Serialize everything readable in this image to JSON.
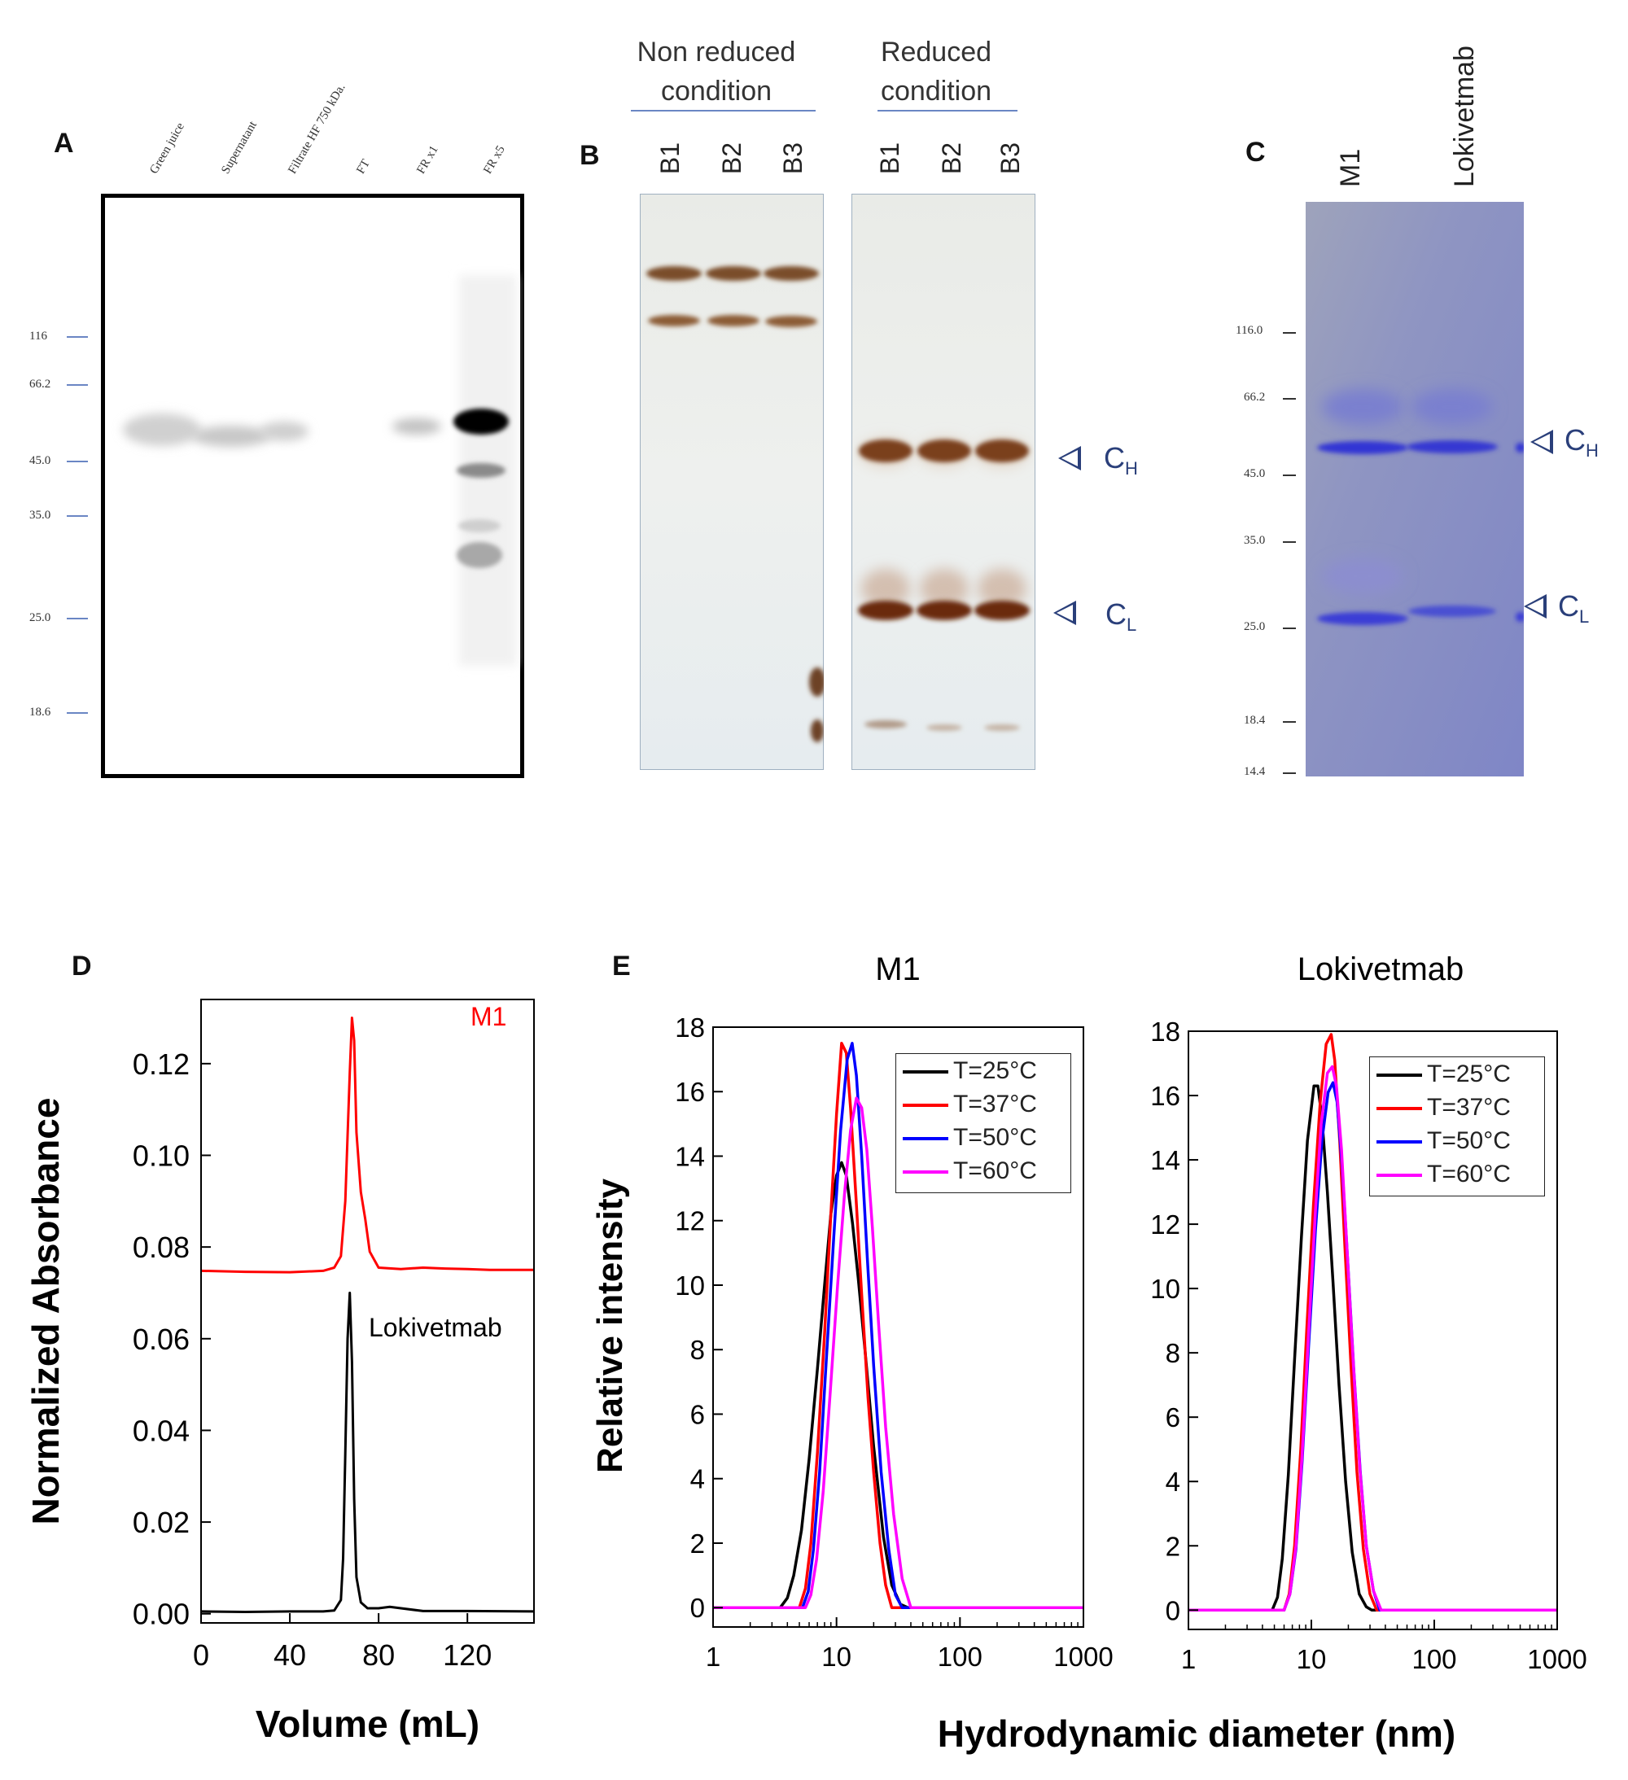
{
  "panels": {
    "A": {
      "letter": "A",
      "lanes": [
        "Green juice",
        "Supernatant",
        "Filtrate HF 750 kDa.",
        "FT",
        "FR x1",
        "FR x5"
      ],
      "markers": [
        "116",
        "66.2",
        "45.0",
        "35.0",
        "25.0",
        "18.6"
      ]
    },
    "B": {
      "letter": "B",
      "conditions": [
        "Non reduced\ncondition",
        "Reduced\ncondition"
      ],
      "lanes": [
        "B1",
        "B2",
        "B3",
        "B1",
        "B2",
        "B3"
      ],
      "arrow_H": "C",
      "arrow_H_sub": "H",
      "arrow_L": "C",
      "arrow_L_sub": "L"
    },
    "C": {
      "letter": "C",
      "lanes": [
        "M1",
        "Lokivetmab"
      ],
      "markers": [
        "116.0",
        "66.2",
        "45.0",
        "35.0",
        "25.0",
        "18.4",
        "14.4"
      ],
      "arrow_H": "C",
      "arrow_H_sub": "H",
      "arrow_L": "C",
      "arrow_L_sub": "L"
    },
    "D": {
      "letter": "D"
    },
    "E": {
      "letter": "E"
    }
  },
  "colors": {
    "t25": "#000000",
    "t37": "#ff0000",
    "t50": "#0000ff",
    "t60": "#ff00ff",
    "m1_trace": "#ff0000",
    "lok_trace": "#000000",
    "marker_line": "#6a86c4",
    "arrow": "#2a3f7a"
  },
  "chart_data": [
    {
      "type": "line",
      "panel": "D",
      "title": "",
      "xlabel": "Volume (mL)",
      "ylabel": "Normalized Absorbance",
      "xlim": [
        0,
        150
      ],
      "ylim": [
        -0.002,
        0.134
      ],
      "xticks": [
        0,
        40,
        80,
        120
      ],
      "yticks": [
        0.0,
        0.02,
        0.04,
        0.06,
        0.08,
        0.1,
        0.12
      ],
      "ytick_labels": [
        "0.00",
        "0.02",
        "0.04",
        "0.06",
        "0.08",
        "0.10",
        "0.12"
      ],
      "series": [
        {
          "name": "M1",
          "x": [
            0,
            20,
            40,
            55,
            60,
            63,
            65,
            67,
            68,
            69,
            70,
            72,
            74,
            76,
            80,
            90,
            100,
            110,
            120,
            130,
            150
          ],
          "y": [
            0.0748,
            0.0746,
            0.0745,
            0.0748,
            0.0755,
            0.078,
            0.09,
            0.118,
            0.13,
            0.125,
            0.105,
            0.092,
            0.086,
            0.079,
            0.0755,
            0.0752,
            0.0755,
            0.0753,
            0.0752,
            0.075,
            0.075
          ]
        },
        {
          "name": "Lokivetmab",
          "x": [
            0,
            20,
            40,
            55,
            60,
            63,
            64,
            65,
            66,
            67,
            68,
            69,
            70,
            72,
            75,
            80,
            85,
            100,
            120,
            150
          ],
          "y": [
            0.0005,
            0.0004,
            0.0005,
            0.0005,
            0.0007,
            0.003,
            0.012,
            0.035,
            0.06,
            0.07,
            0.055,
            0.025,
            0.008,
            0.0025,
            0.0012,
            0.0012,
            0.0015,
            0.0006,
            0.0006,
            0.0005
          ]
        }
      ],
      "annotations": [
        "M1",
        "Lokivetmab"
      ]
    },
    {
      "type": "line",
      "panel": "E-left",
      "title": "M1",
      "xlabel": "Hydrodynamic diameter (nm)",
      "ylabel": "Relative intensity",
      "xscale": "log",
      "xlim": [
        1,
        1000
      ],
      "ylim": [
        -0.6,
        18
      ],
      "xticks": [
        1,
        10,
        100,
        1000
      ],
      "xtick_labels": [
        "1",
        "10",
        "100",
        "1000"
      ],
      "yticks": [
        0,
        2,
        4,
        6,
        8,
        10,
        12,
        14,
        16,
        18
      ],
      "series": [
        {
          "name": "T=25°C",
          "x": [
            1,
            3.5,
            4.0,
            4.5,
            5.2,
            6.0,
            7.0,
            8.0,
            9.0,
            10.0,
            11.0,
            12.0,
            13.5,
            15.0,
            17.0,
            20.0,
            24.0,
            28.0,
            33.0,
            38.0,
            1000
          ],
          "y": [
            0,
            0,
            0.3,
            1.0,
            2.4,
            4.6,
            7.4,
            10.0,
            12.2,
            13.4,
            13.8,
            13.4,
            11.9,
            10.2,
            8.0,
            5.0,
            2.2,
            0.7,
            0.1,
            0,
            0
          ]
        },
        {
          "name": "T=37°C",
          "x": [
            1,
            5.0,
            5.6,
            6.2,
            7.0,
            8.0,
            9.0,
            10.0,
            11.0,
            12.0,
            13.0,
            14.5,
            16.0,
            18.0,
            20.0,
            22.5,
            25.0,
            28.0,
            1000
          ],
          "y": [
            0,
            0,
            0.6,
            2.0,
            4.8,
            8.5,
            12.2,
            15.3,
            17.5,
            17.2,
            15.5,
            12.5,
            9.7,
            6.5,
            4.2,
            2.0,
            0.7,
            0,
            0
          ]
        },
        {
          "name": "T=50°C",
          "x": [
            1,
            5.3,
            5.9,
            6.5,
            7.3,
            8.3,
            9.5,
            10.8,
            12.2,
            13.4,
            14.5,
            16.0,
            17.8,
            20.0,
            23.0,
            26.5,
            30.0,
            34.0,
            1000
          ],
          "y": [
            0,
            0,
            0.5,
            1.8,
            4.2,
            7.8,
            11.5,
            14.8,
            17.0,
            17.5,
            16.5,
            14.0,
            10.8,
            7.5,
            4.2,
            1.8,
            0.4,
            0,
            0
          ]
        },
        {
          "name": "T=60°C",
          "x": [
            1,
            5.6,
            6.2,
            6.9,
            7.8,
            8.9,
            10.2,
            11.6,
            13.0,
            14.5,
            16.0,
            17.6,
            19.5,
            22.0,
            25.0,
            29.0,
            34.0,
            40.0,
            1000
          ],
          "y": [
            0,
            0,
            0.4,
            1.5,
            3.6,
            6.7,
            10.0,
            12.8,
            14.8,
            15.8,
            15.5,
            14.2,
            11.8,
            8.7,
            5.6,
            2.9,
            0.9,
            0,
            0
          ]
        }
      ]
    },
    {
      "type": "line",
      "panel": "E-right",
      "title": "Lokivetmab",
      "xlabel": "Hydrodynamic diameter (nm)",
      "ylabel": "Relative intensity",
      "xscale": "log",
      "xlim": [
        1,
        1000
      ],
      "ylim": [
        -0.6,
        18
      ],
      "xticks": [
        1,
        10,
        100,
        1000
      ],
      "xtick_labels": [
        "1",
        "10",
        "100",
        "1000"
      ],
      "yticks": [
        0,
        2,
        4,
        6,
        8,
        10,
        12,
        14,
        16,
        18
      ],
      "series": [
        {
          "name": "T=25°C",
          "x": [
            1,
            4.8,
            5.3,
            5.8,
            6.5,
            7.3,
            8.3,
            9.3,
            10.5,
            11.3,
            12.2,
            13.5,
            15.0,
            16.8,
            19.0,
            21.5,
            24.5,
            28.0,
            31.0,
            1000
          ],
          "y": [
            0,
            0,
            0.4,
            1.6,
            4.2,
            7.8,
            11.6,
            14.6,
            16.3,
            16.3,
            15.3,
            13.0,
            10.2,
            7.0,
            4.0,
            1.8,
            0.5,
            0.1,
            0,
            0
          ]
        },
        {
          "name": "T=37°C",
          "x": [
            1,
            6.0,
            6.6,
            7.3,
            8.2,
            9.2,
            10.4,
            11.8,
            13.2,
            14.5,
            15.5,
            17.0,
            18.8,
            21.0,
            23.5,
            26.5,
            30.0,
            34.0,
            1000
          ],
          "y": [
            0,
            0,
            0.5,
            2.0,
            5.0,
            8.8,
            12.6,
            15.8,
            17.6,
            17.9,
            17.1,
            14.6,
            11.2,
            7.6,
            4.3,
            1.9,
            0.5,
            0,
            0
          ]
        },
        {
          "name": "T=50°C",
          "x": [
            1,
            6.0,
            6.7,
            7.5,
            8.4,
            9.5,
            10.8,
            12.2,
            13.7,
            15.0,
            16.2,
            17.8,
            19.8,
            22.2,
            25.0,
            28.0,
            32.0,
            36.0,
            1000
          ],
          "y": [
            0,
            0,
            0.5,
            1.9,
            4.6,
            8.2,
            11.8,
            14.6,
            16.1,
            16.4,
            15.8,
            13.8,
            10.8,
            7.4,
            4.3,
            2.0,
            0.6,
            0,
            0
          ]
        },
        {
          "name": "T=60°C",
          "x": [
            1,
            6.0,
            6.7,
            7.5,
            8.4,
            9.5,
            10.8,
            12.0,
            13.5,
            14.8,
            16.0,
            17.6,
            19.6,
            22.0,
            24.8,
            28.0,
            32.0,
            37.0,
            1000
          ],
          "y": [
            0,
            0,
            0.5,
            2.0,
            4.8,
            8.6,
            12.4,
            15.1,
            16.7,
            16.9,
            16.3,
            14.3,
            11.1,
            7.6,
            4.4,
            2.0,
            0.6,
            0,
            0
          ]
        }
      ]
    }
  ]
}
